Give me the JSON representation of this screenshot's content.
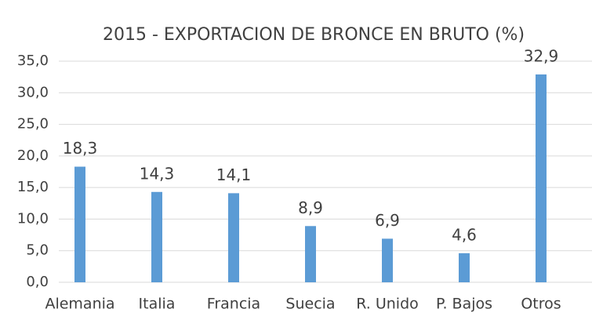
{
  "chart_data": {
    "type": "bar",
    "title": "2015 - EXPORTACION DE BRONCE EN BRUTO (%)",
    "categories": [
      "Alemania",
      "Italia",
      "Francia",
      "Suecia",
      "R. Unido",
      "P. Bajos",
      "Otros"
    ],
    "values": [
      18.3,
      14.3,
      14.1,
      8.9,
      6.9,
      4.6,
      32.9
    ],
    "value_labels": [
      "18,3",
      "14,3",
      "14,1",
      "8,9",
      "6,9",
      "4,6",
      "32,9"
    ],
    "color": "#5b9bd5",
    "ylim": [
      0,
      35
    ],
    "yticks": [
      {
        "value": 0,
        "label": "0,0"
      },
      {
        "value": 5,
        "label": "5,0"
      },
      {
        "value": 10,
        "label": "10,0"
      },
      {
        "value": 15,
        "label": "15,0"
      },
      {
        "value": 20,
        "label": "20,0"
      },
      {
        "value": 25,
        "label": "25,0"
      },
      {
        "value": 30,
        "label": "30,0"
      },
      {
        "value": 35,
        "label": "35,0"
      }
    ],
    "grid": true
  }
}
